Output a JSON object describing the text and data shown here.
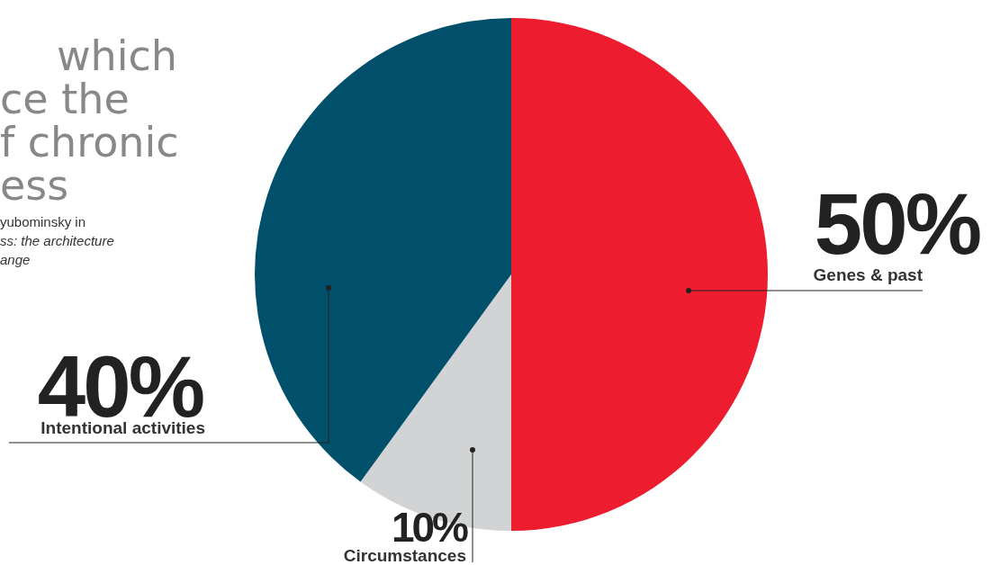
{
  "chart_data": {
    "type": "pie",
    "title": "which\nce the\nf chronic\ness",
    "subtitle": "yubominsky in\nss: the architecture\nange",
    "categories": [
      "Genes & past",
      "Circumstances",
      "Intentional activities"
    ],
    "values": [
      50,
      10,
      40
    ],
    "colors": [
      "#ed1c2e",
      "#d1d3d4",
      "#00506b"
    ],
    "value_labels": [
      "50%",
      "10%",
      "40%"
    ]
  }
}
